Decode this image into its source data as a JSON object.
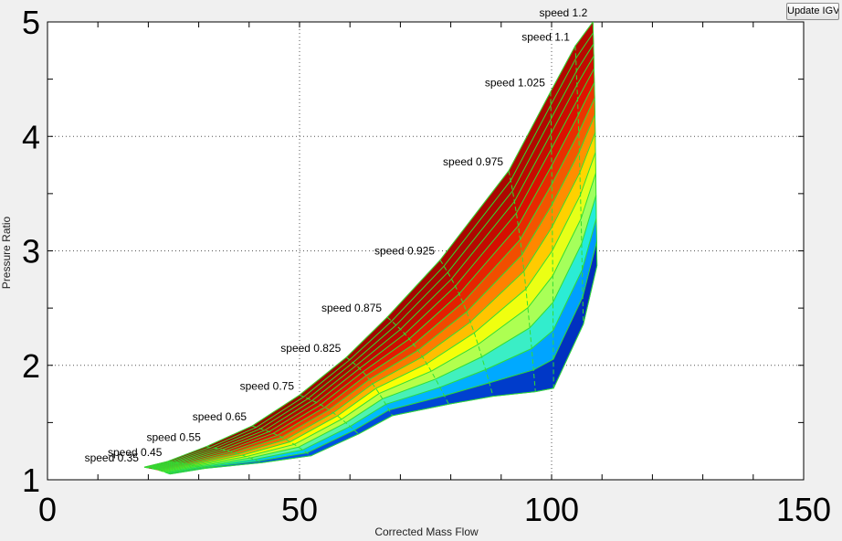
{
  "button": {
    "label": "Update IGV"
  },
  "chart_data": {
    "type": "area",
    "title": "",
    "xlabel": "Corrected Mass Flow",
    "ylabel": "Pressure Ratio",
    "xlim": [
      0,
      150
    ],
    "ylim": [
      1,
      5
    ],
    "xticks": [
      "0",
      "50",
      "100",
      "150"
    ],
    "yticks": [
      "1",
      "2",
      "3",
      "4",
      "5"
    ],
    "grid": true,
    "colormap": [
      "#00008f",
      "#0070ff",
      "#00e5ff",
      "#a0ff60",
      "#ffff00",
      "#ff8000",
      "#e01000",
      "#900000"
    ],
    "grid_line_color": "#33dd33",
    "speed_lines": [
      {
        "label": "speed 0.35",
        "surge": [
          19.2,
          1.11
        ],
        "choke": [
          24.3,
          1.05
        ]
      },
      {
        "label": "speed 0.45",
        "surge": [
          23.8,
          1.16
        ],
        "choke": [
          31.3,
          1.1
        ]
      },
      {
        "label": "speed 0.55",
        "surge": [
          31.5,
          1.29
        ],
        "choke": [
          42.6,
          1.15
        ]
      },
      {
        "label": "speed 0.65",
        "surge": [
          40.6,
          1.47
        ],
        "choke": [
          52.3,
          1.21
        ]
      },
      {
        "label": "speed 0.75",
        "surge": [
          50.0,
          1.74
        ],
        "choke": [
          61.7,
          1.4
        ]
      },
      {
        "label": "speed 0.825",
        "surge": [
          59.3,
          2.07
        ],
        "choke": [
          68.4,
          1.56
        ]
      },
      {
        "label": "speed 0.875",
        "surge": [
          67.4,
          2.42
        ],
        "choke": [
          79.6,
          1.66
        ]
      },
      {
        "label": "speed 0.925",
        "surge": [
          77.9,
          2.92
        ],
        "choke": [
          88.4,
          1.73
        ]
      },
      {
        "label": "speed 0.975",
        "surge": [
          91.5,
          3.7
        ],
        "choke": [
          96.8,
          1.77
        ]
      },
      {
        "label": "speed 1.025",
        "surge": [
          99.8,
          4.39
        ],
        "choke": [
          100.4,
          1.8
        ]
      },
      {
        "label": "speed 1.1",
        "surge": [
          104.7,
          4.79
        ],
        "choke": [
          106.3,
          2.36
        ]
      },
      {
        "label": "speed 1.2",
        "surge": [
          108.2,
          5.0
        ],
        "choke": [
          109.0,
          2.87
        ]
      }
    ]
  }
}
